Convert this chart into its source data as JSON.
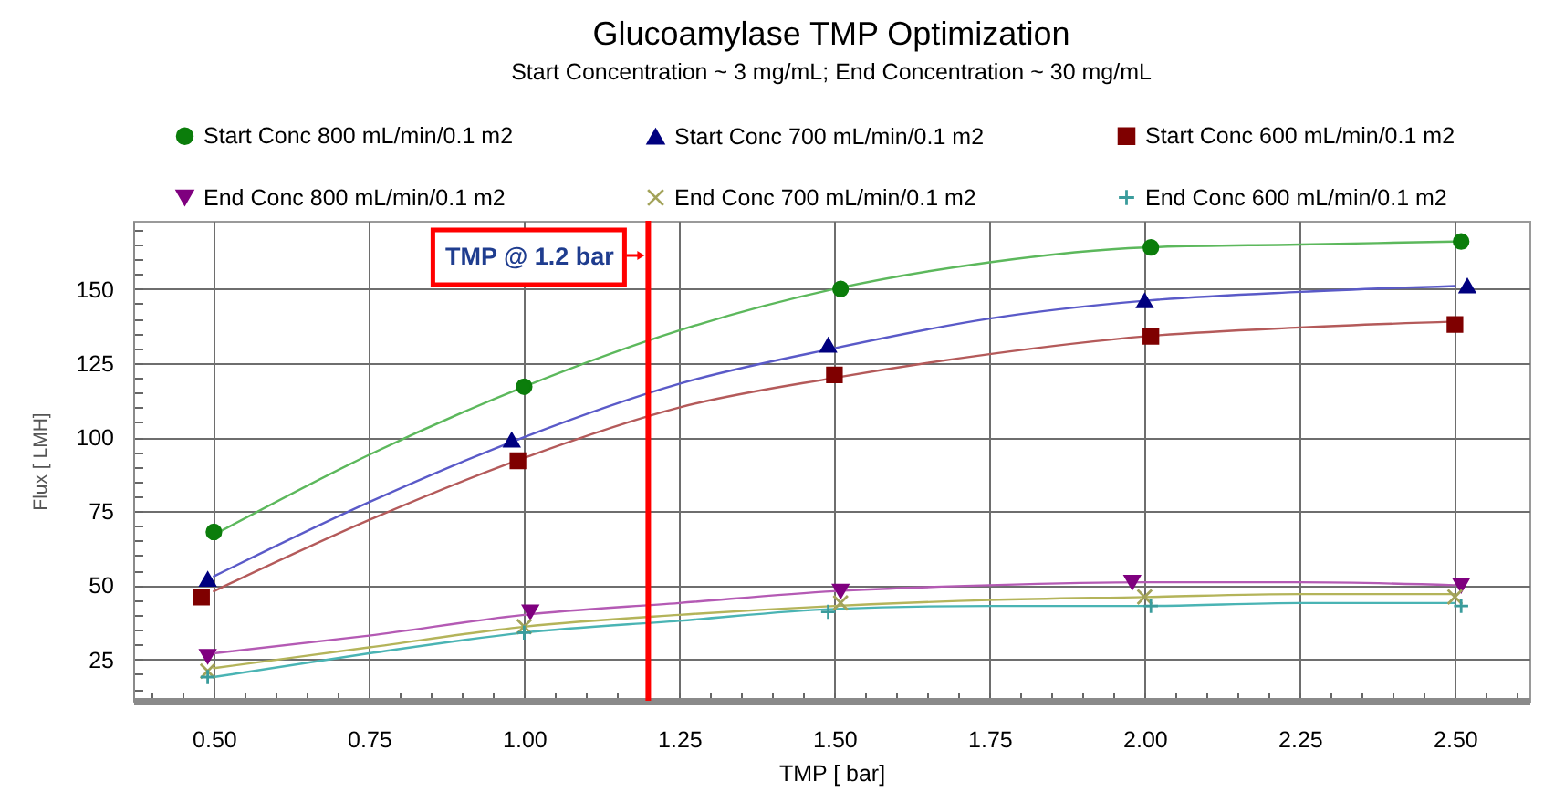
{
  "chart_data": {
    "type": "scatter",
    "title": "Glucoamylase TMP Optimization",
    "subtitle": "Start Concentration ~ 3 mg/mL; End Concentration ~ 30 mg/mL",
    "xlabel": "TMP [ bar]",
    "ylabel": "Flux [ LMH]",
    "xlim": [
      0.37,
      2.62
    ],
    "xticks": [
      {
        "value": 0.4,
        "label": null
      },
      {
        "value": 0.45,
        "label": null
      },
      {
        "value": 0.5,
        "label": "0.50"
      },
      {
        "value": 0.55,
        "label": null
      },
      {
        "value": 0.6,
        "label": null
      },
      {
        "value": 0.65,
        "label": null
      },
      {
        "value": 0.7,
        "label": null
      },
      0.75,
      {
        "value": 0.8,
        "label": null
      },
      {
        "value": 0.85,
        "label": null
      },
      {
        "value": 0.9,
        "label": null
      },
      {
        "value": 0.95,
        "label": null
      },
      {
        "value": 1,
        "label": "1.00"
      },
      {
        "value": 1.05,
        "label": null
      },
      {
        "value": 1.1,
        "label": null
      },
      {
        "value": 1.15,
        "label": null
      },
      {
        "value": 1.2,
        "label": null
      },
      1.25,
      {
        "value": 1.3,
        "label": null
      },
      {
        "value": 1.35,
        "label": null
      },
      {
        "value": 1.4,
        "label": null
      },
      {
        "value": 1.45,
        "label": null
      },
      {
        "value": 1.5,
        "label": "1.50"
      },
      {
        "value": 1.55,
        "label": null
      },
      {
        "value": 1.6,
        "label": null
      },
      {
        "value": 1.65,
        "label": null
      },
      {
        "value": 1.7,
        "label": null
      },
      1.75,
      {
        "value": 1.8,
        "label": null
      },
      {
        "value": 1.85,
        "label": null
      },
      {
        "value": 1.9,
        "label": null
      },
      {
        "value": 1.95,
        "label": null
      },
      {
        "value": 2,
        "label": "2.00"
      },
      {
        "value": 2.05,
        "label": null
      },
      {
        "value": 2.1,
        "label": null
      },
      {
        "value": 2.15,
        "label": null
      },
      {
        "value": 2.2,
        "label": null
      },
      2.25,
      {
        "value": 2.3,
        "label": null
      },
      {
        "value": 2.35,
        "label": null
      },
      {
        "value": 2.4,
        "label": null
      },
      {
        "value": 2.45,
        "label": null
      },
      {
        "value": 2.5,
        "label": "2.50"
      },
      {
        "value": 2.55,
        "label": null
      },
      {
        "value": 2.6,
        "label": null
      }
    ],
    "ylim": [
      11,
      173
    ],
    "yticks": [
      {
        "value": 15,
        "label": null
      },
      {
        "value": 20,
        "label": null
      },
      25,
      {
        "value": 30,
        "label": null
      },
      {
        "value": 35,
        "label": null
      },
      {
        "value": 40,
        "label": null
      },
      {
        "value": 45,
        "label": null
      },
      50,
      {
        "value": 55,
        "label": null
      },
      {
        "value": 60,
        "label": null
      },
      {
        "value": 65,
        "label": null
      },
      {
        "value": 70,
        "label": null
      },
      75,
      {
        "value": 80,
        "label": null
      },
      {
        "value": 85,
        "label": null
      },
      {
        "value": 90,
        "label": null
      },
      {
        "value": 95,
        "label": null
      },
      100,
      {
        "value": 105,
        "label": null
      },
      {
        "value": 110,
        "label": null
      },
      {
        "value": 115,
        "label": null
      },
      {
        "value": 120,
        "label": null
      },
      125,
      {
        "value": 130,
        "label": null
      },
      {
        "value": 135,
        "label": null
      },
      {
        "value": 140,
        "label": null
      },
      {
        "value": 145,
        "label": null
      },
      150,
      {
        "value": 155,
        "label": null
      },
      {
        "value": 160,
        "label": null
      },
      {
        "value": 165,
        "label": null
      },
      {
        "value": 170,
        "label": null
      }
    ],
    "grid": true,
    "legend": "top",
    "series": [
      {
        "name": "Start Conc 800 mL/min/0.1 m2",
        "color": "#0b7d0b",
        "marker": "circle",
        "x": [
          0.5,
          1.0,
          1.51,
          2.01,
          2.51
        ],
        "values": [
          68,
          117,
          150,
          164,
          166
        ]
      },
      {
        "name": "Start Conc 700 mL/min/0.1 m2",
        "color": "#00007f",
        "marker": "triangle",
        "x": [
          0.49,
          0.98,
          1.49,
          2.0,
          2.52
        ],
        "values": [
          52,
          99,
          131,
          146,
          151
        ]
      },
      {
        "name": "Start Conc 600 mL/min/0.1 m2",
        "color": "#7f0000",
        "marker": "square",
        "x": [
          0.48,
          0.99,
          1.5,
          2.01,
          2.5
        ],
        "values": [
          46,
          92,
          121,
          134,
          138
        ]
      },
      {
        "name": "End Conc 800 mL/min/0.1 m2",
        "color": "#7f007f",
        "marker": "triangle-down",
        "x": [
          0.49,
          1.01,
          1.51,
          1.98,
          2.51
        ],
        "values": [
          26,
          41,
          48,
          51,
          50
        ]
      },
      {
        "name": "End Conc 700 mL/min/0.1 m2",
        "color": "#a3a35a",
        "marker": "cross",
        "x": [
          0.49,
          1.0,
          1.51,
          2.0,
          2.5
        ],
        "values": [
          21,
          36,
          44,
          46,
          46
        ]
      },
      {
        "name": "End Conc 600 mL/min/0.1 m2",
        "color": "#3a9c9c",
        "marker": "plus",
        "x": [
          0.49,
          1.0,
          1.49,
          2.01,
          2.51
        ],
        "values": [
          19,
          34,
          41,
          43,
          43
        ]
      },
      {
        "type": "line",
        "color": "#5cb85c",
        "x": [
          0.5,
          0.75,
          1.0,
          1.25,
          1.5,
          1.75,
          2.0,
          2.25,
          2.5
        ],
        "values": [
          67,
          94,
          117,
          136,
          150,
          159,
          164,
          165,
          166
        ]
      },
      {
        "type": "line",
        "color": "#5a5ac8",
        "x": [
          0.5,
          0.75,
          1.0,
          1.25,
          1.5,
          1.75,
          2.0,
          2.25,
          2.5
        ],
        "values": [
          53,
          78,
          100,
          118,
          130,
          140,
          146,
          149,
          151
        ]
      },
      {
        "type": "line",
        "color": "#b45a5a",
        "x": [
          0.5,
          0.75,
          1.0,
          1.25,
          1.5,
          1.75,
          2.0,
          2.25,
          2.5
        ],
        "values": [
          48,
          72,
          93,
          110,
          120,
          128,
          134,
          137,
          139
        ]
      },
      {
        "type": "line",
        "color": "#b45ab4",
        "x": [
          0.5,
          0.75,
          1.0,
          1.25,
          1.5,
          1.75,
          2.0,
          2.25,
          2.5
        ],
        "values": [
          27,
          33,
          40,
          44,
          48,
          50,
          51,
          51,
          50
        ]
      },
      {
        "type": "line",
        "color": "#b4b45a",
        "x": [
          0.5,
          0.75,
          1.0,
          1.25,
          1.5,
          1.75,
          2.0,
          2.25,
          2.5
        ],
        "values": [
          22,
          29,
          36,
          40,
          43,
          45,
          46,
          47,
          47
        ]
      },
      {
        "type": "line",
        "color": "#4ab4b4",
        "x": [
          0.5,
          0.75,
          1.0,
          1.25,
          1.5,
          1.75,
          2.0,
          2.25,
          2.5
        ],
        "values": [
          19,
          27,
          34,
          38,
          42,
          43,
          43,
          44,
          44
        ]
      }
    ],
    "ref_lines": [
      {
        "axis": "x",
        "value": 1.2,
        "label": "TMP @ 1.2 bar",
        "color": "#ff0000"
      }
    ]
  }
}
